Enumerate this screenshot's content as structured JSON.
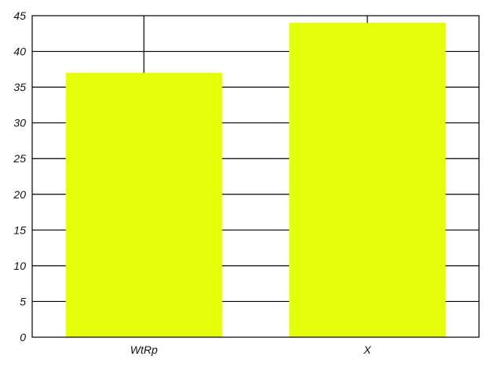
{
  "chart_data": {
    "type": "bar",
    "categories": [
      "WtRp",
      "X"
    ],
    "values": [
      37,
      44
    ],
    "ylim": [
      0,
      45
    ],
    "y_ticks": [
      0,
      5,
      10,
      15,
      20,
      25,
      30,
      35,
      40,
      45
    ],
    "grid": true,
    "title": "",
    "xlabel": "",
    "ylabel": "",
    "bar_color": "#e5ff0a",
    "axis_color": "#000000"
  }
}
